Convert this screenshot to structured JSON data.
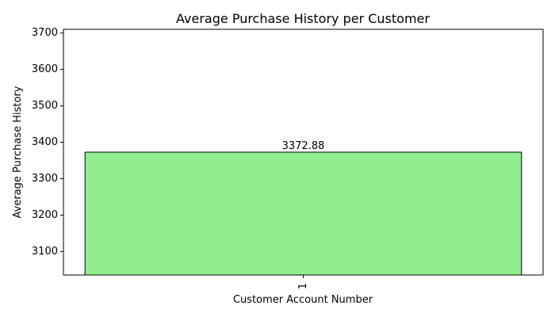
{
  "chart_data": {
    "type": "bar",
    "title": "Average Purchase History per Customer",
    "xlabel": "Customer Account Number",
    "ylabel": "Average Purchase History",
    "categories": [
      "1"
    ],
    "values": [
      3372.88
    ],
    "data_labels": [
      "3372.88"
    ],
    "ylim": [
      3035.59,
      3710.17
    ],
    "yticks": [
      3100,
      3200,
      3300,
      3400,
      3500,
      3600,
      3700
    ],
    "ytick_labels": [
      "3100",
      "3200",
      "3300",
      "3400",
      "3500",
      "3600",
      "3700"
    ],
    "xtick_rotation": 90,
    "grid": false,
    "legend": "none",
    "colors": {
      "bar_fill": "#90ee90",
      "bar_edge": "#000000",
      "axis": "#000000",
      "text": "#000000"
    }
  }
}
